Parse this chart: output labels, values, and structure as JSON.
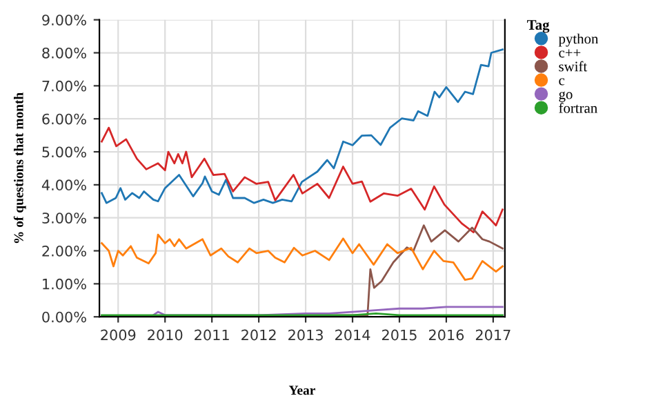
{
  "chart_data": {
    "type": "line",
    "xlabel": "Year",
    "ylabel": "% of questions that month",
    "legend_title": "Tag",
    "legend": "top right",
    "grid": true,
    "marker": "none",
    "line_style": "solid",
    "xlim": [
      2008.6,
      2017.25
    ],
    "xticks": [
      2009,
      2010,
      2011,
      2012,
      2013,
      2014,
      2015,
      2016,
      2017
    ],
    "ylim": [
      0,
      9
    ],
    "yticks": [
      {
        "value": 0,
        "label": "0.00%"
      },
      {
        "value": 1,
        "label": "1.00%"
      },
      {
        "value": 2,
        "label": "2.00%"
      },
      {
        "value": 3,
        "label": "3.00%"
      },
      {
        "value": 4,
        "label": "4.00%"
      },
      {
        "value": 5,
        "label": "5.00%"
      },
      {
        "value": 6,
        "label": "6.00%"
      },
      {
        "value": 7,
        "label": "7.00%"
      },
      {
        "value": 8,
        "label": "8.00%"
      },
      {
        "value": 9,
        "label": "9.00%"
      }
    ],
    "series": [
      {
        "name": "python",
        "color": "#1f77b4",
        "x": [
          2008.65,
          2008.75,
          2008.95,
          2009.05,
          2009.15,
          2009.3,
          2009.45,
          2009.55,
          2009.75,
          2009.85,
          2010.0,
          2010.3,
          2010.6,
          2010.8,
          2010.85,
          2011.0,
          2011.15,
          2011.3,
          2011.45,
          2011.7,
          2011.9,
          2012.1,
          2012.3,
          2012.5,
          2012.7,
          2012.92,
          2013.25,
          2013.46,
          2013.6,
          2013.8,
          2014.0,
          2014.2,
          2014.4,
          2014.6,
          2014.8,
          2015.05,
          2015.3,
          2015.4,
          2015.6,
          2015.75,
          2015.85,
          2016.0,
          2016.25,
          2016.4,
          2016.57,
          2016.74,
          2016.9,
          2016.96,
          2017.2
        ],
        "values": [
          3.75,
          3.45,
          3.6,
          3.9,
          3.55,
          3.75,
          3.6,
          3.8,
          3.55,
          3.5,
          3.9,
          4.3,
          3.65,
          4.05,
          4.25,
          3.8,
          3.7,
          4.15,
          3.6,
          3.6,
          3.45,
          3.55,
          3.45,
          3.55,
          3.5,
          4.09,
          4.4,
          4.75,
          4.5,
          5.31,
          5.2,
          5.49,
          5.5,
          5.21,
          5.73,
          6.01,
          5.95,
          6.23,
          6.09,
          6.82,
          6.65,
          6.96,
          6.51,
          6.82,
          6.75,
          7.63,
          7.59,
          8.0,
          8.1
        ]
      },
      {
        "name": "c++",
        "color": "#d62728",
        "x": [
          2008.65,
          2008.8,
          2008.96,
          2009.17,
          2009.4,
          2009.6,
          2009.85,
          2010.0,
          2010.07,
          2010.2,
          2010.28,
          2010.37,
          2010.45,
          2010.57,
          2010.84,
          2011.03,
          2011.27,
          2011.45,
          2011.7,
          2011.95,
          2012.2,
          2012.35,
          2012.74,
          2012.93,
          2013.25,
          2013.5,
          2013.8,
          2014.0,
          2014.2,
          2014.38,
          2014.67,
          2014.96,
          2015.25,
          2015.54,
          2015.74,
          2015.96,
          2016.33,
          2016.58,
          2016.77,
          2016.92,
          2017.06,
          2017.2
        ],
        "values": [
          5.31,
          5.73,
          5.17,
          5.38,
          4.79,
          4.47,
          4.65,
          4.44,
          5.0,
          4.65,
          4.93,
          4.65,
          5.0,
          4.23,
          4.79,
          4.3,
          4.33,
          3.8,
          4.23,
          4.03,
          4.09,
          3.53,
          4.3,
          3.74,
          4.03,
          3.6,
          4.55,
          4.03,
          4.1,
          3.49,
          3.74,
          3.67,
          3.88,
          3.25,
          3.95,
          3.4,
          2.83,
          2.56,
          3.19,
          2.98,
          2.77,
          3.25
        ]
      },
      {
        "name": "swift",
        "color": "#8c564b",
        "x": [
          2008.65,
          2014.32,
          2014.38,
          2014.46,
          2014.62,
          2014.87,
          2015.16,
          2015.3,
          2015.52,
          2015.68,
          2015.97,
          2016.26,
          2016.55,
          2016.77,
          2016.92,
          2017.2
        ],
        "values": [
          0.0,
          0.05,
          1.44,
          0.88,
          1.08,
          1.65,
          2.1,
          2.0,
          2.77,
          2.28,
          2.62,
          2.28,
          2.7,
          2.35,
          2.28,
          2.07
        ]
      },
      {
        "name": "c",
        "color": "#ff7f0e",
        "x": [
          2008.65,
          2008.8,
          2008.9,
          2009.0,
          2009.1,
          2009.27,
          2009.4,
          2009.65,
          2009.8,
          2009.85,
          2010.0,
          2010.1,
          2010.2,
          2010.3,
          2010.45,
          2010.8,
          2010.97,
          2011.2,
          2011.35,
          2011.55,
          2011.8,
          2011.95,
          2012.2,
          2012.35,
          2012.55,
          2012.75,
          2012.93,
          2013.2,
          2013.5,
          2013.8,
          2014.0,
          2014.14,
          2014.45,
          2014.74,
          2014.96,
          2015.25,
          2015.5,
          2015.74,
          2015.94,
          2016.15,
          2016.4,
          2016.55,
          2016.77,
          2017.06,
          2017.2
        ],
        "values": [
          2.23,
          2.0,
          1.53,
          2.0,
          1.86,
          2.14,
          1.79,
          1.62,
          1.93,
          2.49,
          2.23,
          2.35,
          2.14,
          2.35,
          2.07,
          2.35,
          1.86,
          2.07,
          1.83,
          1.65,
          2.07,
          1.93,
          2.0,
          1.79,
          1.65,
          2.09,
          1.86,
          2.0,
          1.72,
          2.37,
          1.93,
          2.2,
          1.58,
          2.2,
          1.93,
          2.09,
          1.44,
          2.0,
          1.69,
          1.65,
          1.12,
          1.16,
          1.69,
          1.37,
          1.53
        ]
      },
      {
        "name": "go",
        "color": "#9467bd",
        "x": [
          2008.65,
          2009.7,
          2009.85,
          2010.0,
          2011.0,
          2012.0,
          2013.0,
          2013.5,
          2014.0,
          2014.5,
          2015.0,
          2015.5,
          2016.0,
          2016.5,
          2017.0,
          2017.2
        ],
        "values": [
          0.0,
          0.0,
          0.15,
          0.05,
          0.05,
          0.05,
          0.1,
          0.1,
          0.15,
          0.2,
          0.25,
          0.25,
          0.3,
          0.3,
          0.3,
          0.3
        ]
      },
      {
        "name": "fortran",
        "color": "#2ca02c",
        "x": [
          2008.65,
          2010.0,
          2012.0,
          2014.0,
          2014.5,
          2015.0,
          2016.0,
          2017.2
        ],
        "values": [
          0.05,
          0.05,
          0.05,
          0.05,
          0.1,
          0.05,
          0.05,
          0.05
        ]
      }
    ]
  }
}
